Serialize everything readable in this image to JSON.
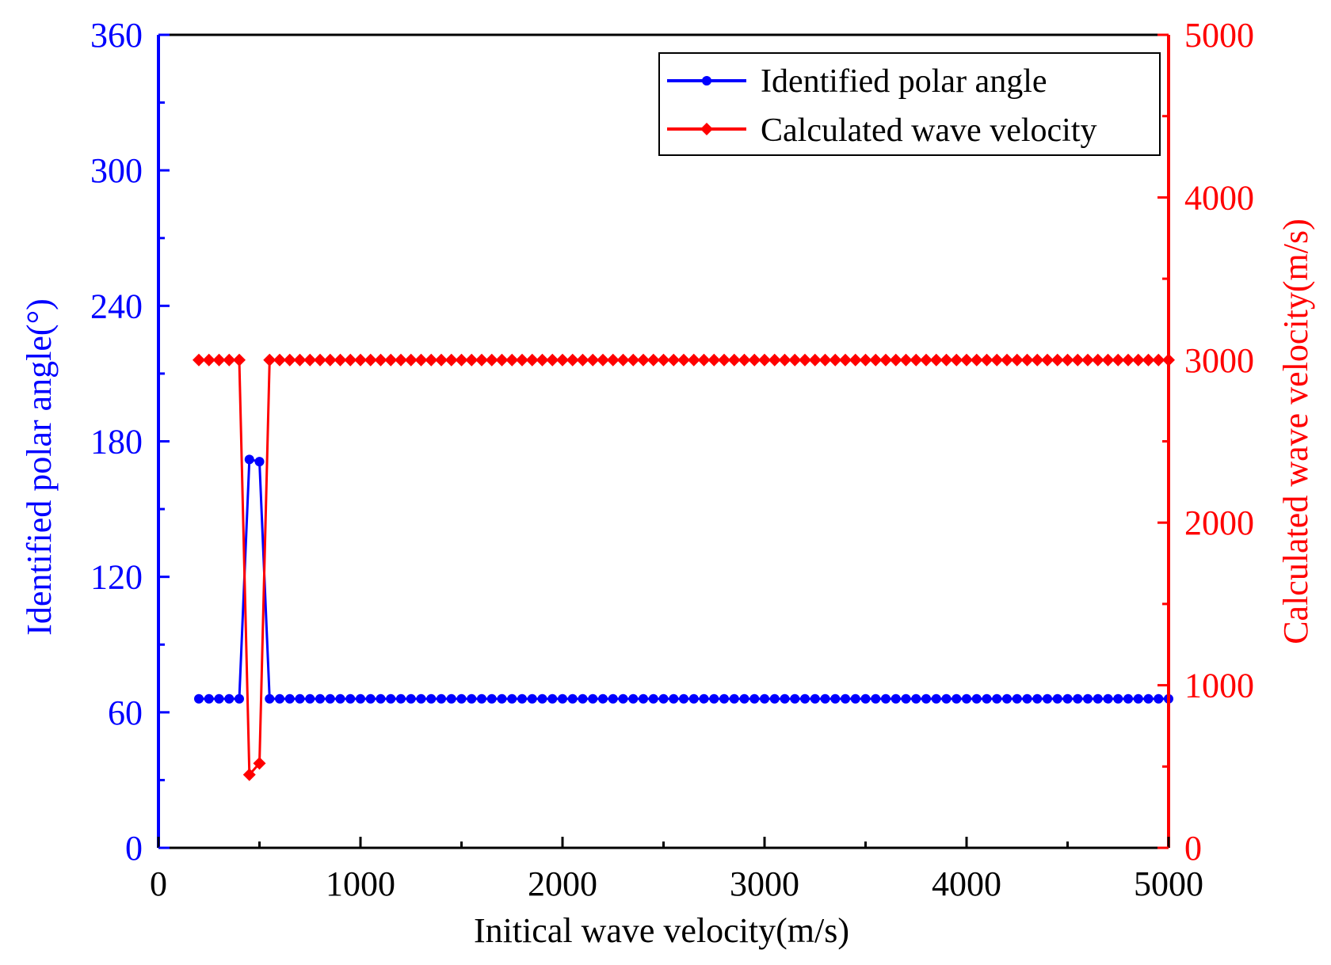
{
  "colors": {
    "left_axis": "#0000ff",
    "right_axis": "#ff0000",
    "frame": "#000000",
    "polar_series": "#0000ff",
    "velocity_series": "#ff0000"
  },
  "chart_data": {
    "type": "line",
    "x": [
      200,
      250,
      300,
      350,
      400,
      450,
      500,
      550,
      600,
      650,
      700,
      750,
      800,
      850,
      900,
      950,
      1000,
      1050,
      1100,
      1150,
      1200,
      1250,
      1300,
      1350,
      1400,
      1450,
      1500,
      1550,
      1600,
      1650,
      1700,
      1750,
      1800,
      1850,
      1900,
      1950,
      2000,
      2050,
      2100,
      2150,
      2200,
      2250,
      2300,
      2350,
      2400,
      2450,
      2500,
      2550,
      2600,
      2650,
      2700,
      2750,
      2800,
      2850,
      2900,
      2950,
      3000,
      3050,
      3100,
      3150,
      3200,
      3250,
      3300,
      3350,
      3400,
      3450,
      3500,
      3550,
      3600,
      3650,
      3700,
      3750,
      3800,
      3850,
      3900,
      3950,
      4000,
      4050,
      4100,
      4150,
      4200,
      4250,
      4300,
      4350,
      4400,
      4450,
      4500,
      4550,
      4600,
      4650,
      4700,
      4750,
      4800,
      4850,
      4900,
      4950,
      5000
    ],
    "series": [
      {
        "name": "Identified polar angle",
        "axis": "left",
        "marker": "circle",
        "values": [
          66,
          66,
          66,
          66,
          66,
          172,
          171,
          66,
          66,
          66,
          66,
          66,
          66,
          66,
          66,
          66,
          66,
          66,
          66,
          66,
          66,
          66,
          66,
          66,
          66,
          66,
          66,
          66,
          66,
          66,
          66,
          66,
          66,
          66,
          66,
          66,
          66,
          66,
          66,
          66,
          66,
          66,
          66,
          66,
          66,
          66,
          66,
          66,
          66,
          66,
          66,
          66,
          66,
          66,
          66,
          66,
          66,
          66,
          66,
          66,
          66,
          66,
          66,
          66,
          66,
          66,
          66,
          66,
          66,
          66,
          66,
          66,
          66,
          66,
          66,
          66,
          66,
          66,
          66,
          66,
          66,
          66,
          66,
          66,
          66,
          66,
          66,
          66,
          66,
          66,
          66,
          66,
          66,
          66,
          66,
          66,
          66
        ]
      },
      {
        "name": "Calculated wave velocity",
        "axis": "right",
        "marker": "diamond",
        "values": [
          3000,
          3000,
          3000,
          3000,
          3000,
          450,
          520,
          3000,
          3000,
          3000,
          3000,
          3000,
          3000,
          3000,
          3000,
          3000,
          3000,
          3000,
          3000,
          3000,
          3000,
          3000,
          3000,
          3000,
          3000,
          3000,
          3000,
          3000,
          3000,
          3000,
          3000,
          3000,
          3000,
          3000,
          3000,
          3000,
          3000,
          3000,
          3000,
          3000,
          3000,
          3000,
          3000,
          3000,
          3000,
          3000,
          3000,
          3000,
          3000,
          3000,
          3000,
          3000,
          3000,
          3000,
          3000,
          3000,
          3000,
          3000,
          3000,
          3000,
          3000,
          3000,
          3000,
          3000,
          3000,
          3000,
          3000,
          3000,
          3000,
          3000,
          3000,
          3000,
          3000,
          3000,
          3000,
          3000,
          3000,
          3000,
          3000,
          3000,
          3000,
          3000,
          3000,
          3000,
          3000,
          3000,
          3000,
          3000,
          3000,
          3000,
          3000,
          3000,
          3000,
          3000,
          3000,
          3000,
          3000
        ]
      }
    ],
    "xlabel": "Initical wave velocity(m/s)",
    "ylabel_left": "Identified polar angle(°)",
    "ylabel_right": "Calculated wave velocity(m/s)",
    "xlim": [
      0,
      5000
    ],
    "ylim_left": [
      0,
      360
    ],
    "ylim_right": [
      0,
      5000
    ],
    "x_ticks": [
      0,
      1000,
      2000,
      3000,
      4000,
      5000
    ],
    "y_left_ticks": [
      0,
      60,
      120,
      180,
      240,
      300,
      360
    ],
    "y_right_ticks": [
      0,
      1000,
      2000,
      3000,
      4000,
      5000
    ],
    "legend": [
      "Identified polar angle",
      "Calculated wave velocity"
    ],
    "legend_position": "top-right",
    "grid": false
  }
}
